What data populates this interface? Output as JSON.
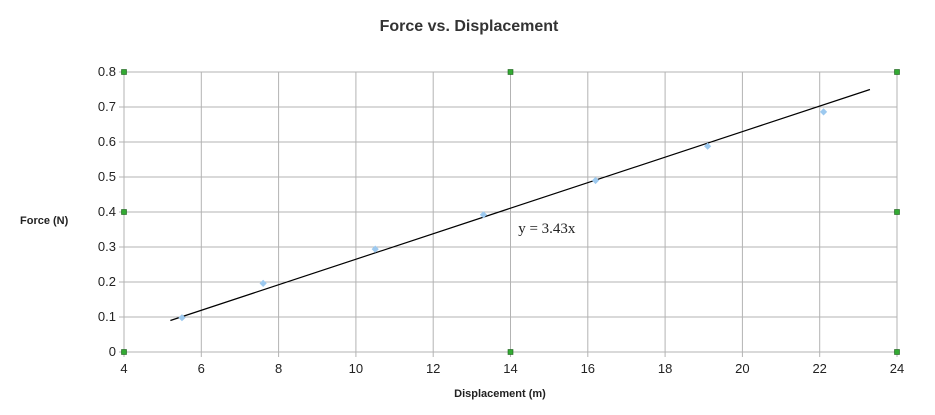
{
  "chart_data": {
    "type": "scatter",
    "title": "Force vs. Displacement",
    "xlabel": "Displacement (m)",
    "ylabel": "Force (N)",
    "xlim": [
      4,
      24
    ],
    "ylim": [
      0,
      0.8
    ],
    "x_ticks": [
      4,
      6,
      8,
      10,
      12,
      14,
      16,
      18,
      20,
      22,
      24
    ],
    "y_ticks": [
      0,
      0.1,
      0.2,
      0.3,
      0.4,
      0.5,
      0.6,
      0.7,
      0.8
    ],
    "grid": true,
    "series": [
      {
        "x": [
          5.5,
          7.6,
          10.5,
          13.3,
          16.2,
          19.1,
          22.1
        ],
        "y": [
          0.098,
          0.196,
          0.294,
          0.392,
          0.49,
          0.588,
          0.686
        ],
        "color": "#9cc9ef"
      }
    ],
    "trendline": {
      "x_range": [
        5.2,
        23.3
      ],
      "equation": "y = 3.43x",
      "color": "#000000",
      "y_start": 0.09,
      "y_end": 0.75
    },
    "selection_handle_color": "#33aa33",
    "annotations": [
      {
        "text": "y = 3.43x",
        "x": 14.2,
        "y": 0.34
      }
    ]
  }
}
